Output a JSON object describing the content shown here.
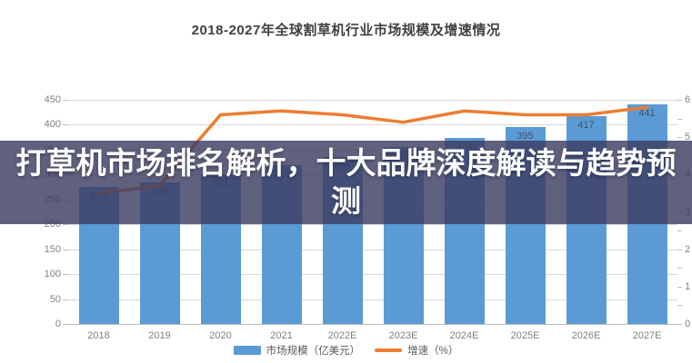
{
  "chart": {
    "title": "2018-2027年全球割草机行业市场规模及增速情况"
  },
  "banner": {
    "title": "打草机市场排名解析，十大品牌深度解读与趋势预测",
    "background": "rgba(61,61,99,0.82)",
    "text_color": "#ffffff"
  },
  "colors": {
    "bar": "#5B9BD5",
    "line": "#ED7D31",
    "grid": "#D9D9D9",
    "axis_text": "#7F7F7F",
    "bar_label_text": "#44546A",
    "title_text": "#404040"
  },
  "chart_data": {
    "type": "bar",
    "subtype": "combo-bar-line",
    "title": "2018-2027年全球割草机行业市场规模及增速情况",
    "categories": [
      "2018",
      "2019",
      "2020",
      "2021",
      "2022E",
      "2023E",
      "2024E",
      "2025E",
      "2026E",
      "2027E"
    ],
    "series": [
      {
        "name": "市场规模（亿美元）",
        "type": "bar",
        "axis": "left",
        "color": "#5B9BD5",
        "values": [
          275,
          285,
          301,
          318,
          336,
          355,
          374,
          395,
          417,
          441
        ]
      },
      {
        "name": "增速（%）",
        "type": "line",
        "axis": "right",
        "color": "#ED7D31",
        "values": [
          3.5,
          3.7,
          5.6,
          5.7,
          5.6,
          5.4,
          5.7,
          5.6,
          5.6,
          5.8
        ]
      }
    ],
    "left_axis": {
      "min": 0,
      "max": 450,
      "step": 50,
      "ticks": [
        0,
        50,
        100,
        150,
        200,
        250,
        300,
        350,
        400,
        450
      ]
    },
    "right_axis": {
      "min": 0,
      "max": 6,
      "step": 1,
      "ticks": [
        0,
        1,
        2,
        3,
        4,
        5,
        6
      ]
    },
    "grid": true,
    "legend_position": "bottom",
    "notes": "2021/2022E/2023E bar data labels are hidden behind the overlay banner; values estimated from bar heights"
  }
}
